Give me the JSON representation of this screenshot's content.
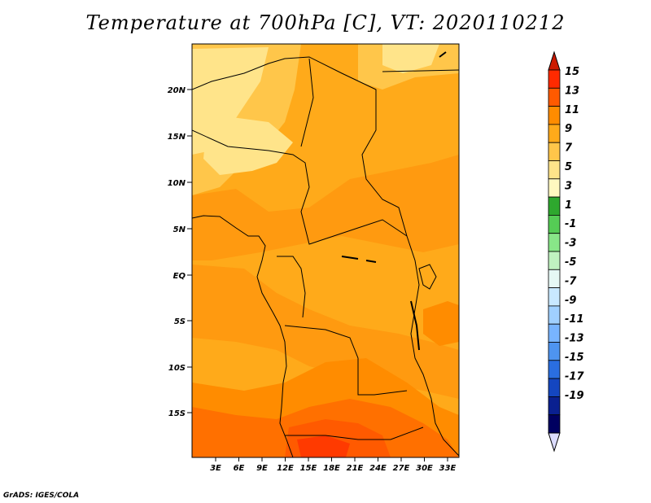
{
  "title": "Temperature at 700hPa [C], VT: 2020110212",
  "credit": "GrADS: IGES/COLA",
  "map": {
    "lat_ticks": [
      "20N",
      "15N",
      "10N",
      "5N",
      "EQ",
      "5S",
      "10S",
      "15S"
    ],
    "lon_ticks": [
      "3E",
      "6E",
      "9E",
      "12E",
      "15E",
      "18E",
      "21E",
      "24E",
      "27E",
      "30E",
      "33E"
    ]
  },
  "colorbar": {
    "labels": [
      "15",
      "13",
      "11",
      "9",
      "7",
      "5",
      "3",
      "1",
      "-1",
      "-3",
      "-5",
      "-7",
      "-9",
      "-11",
      "-13",
      "-15",
      "-17",
      "-19"
    ],
    "colors": [
      "#ff2a00",
      "#ff5a00",
      "#ff8c00",
      "#ffaa1a",
      "#ffc64a",
      "#ffe48a",
      "#fff8c0",
      "#2ea82e",
      "#55cc55",
      "#88e688",
      "#c0f2c0",
      "#e6f8f5",
      "#c8e8ff",
      "#a0d0ff",
      "#78b4ff",
      "#4e94f0",
      "#2a6ee0",
      "#1446c0",
      "#0a2090",
      "#000060"
    ],
    "top_tip": "#cc1a00",
    "bottom_tip": "#dcdcff"
  }
}
